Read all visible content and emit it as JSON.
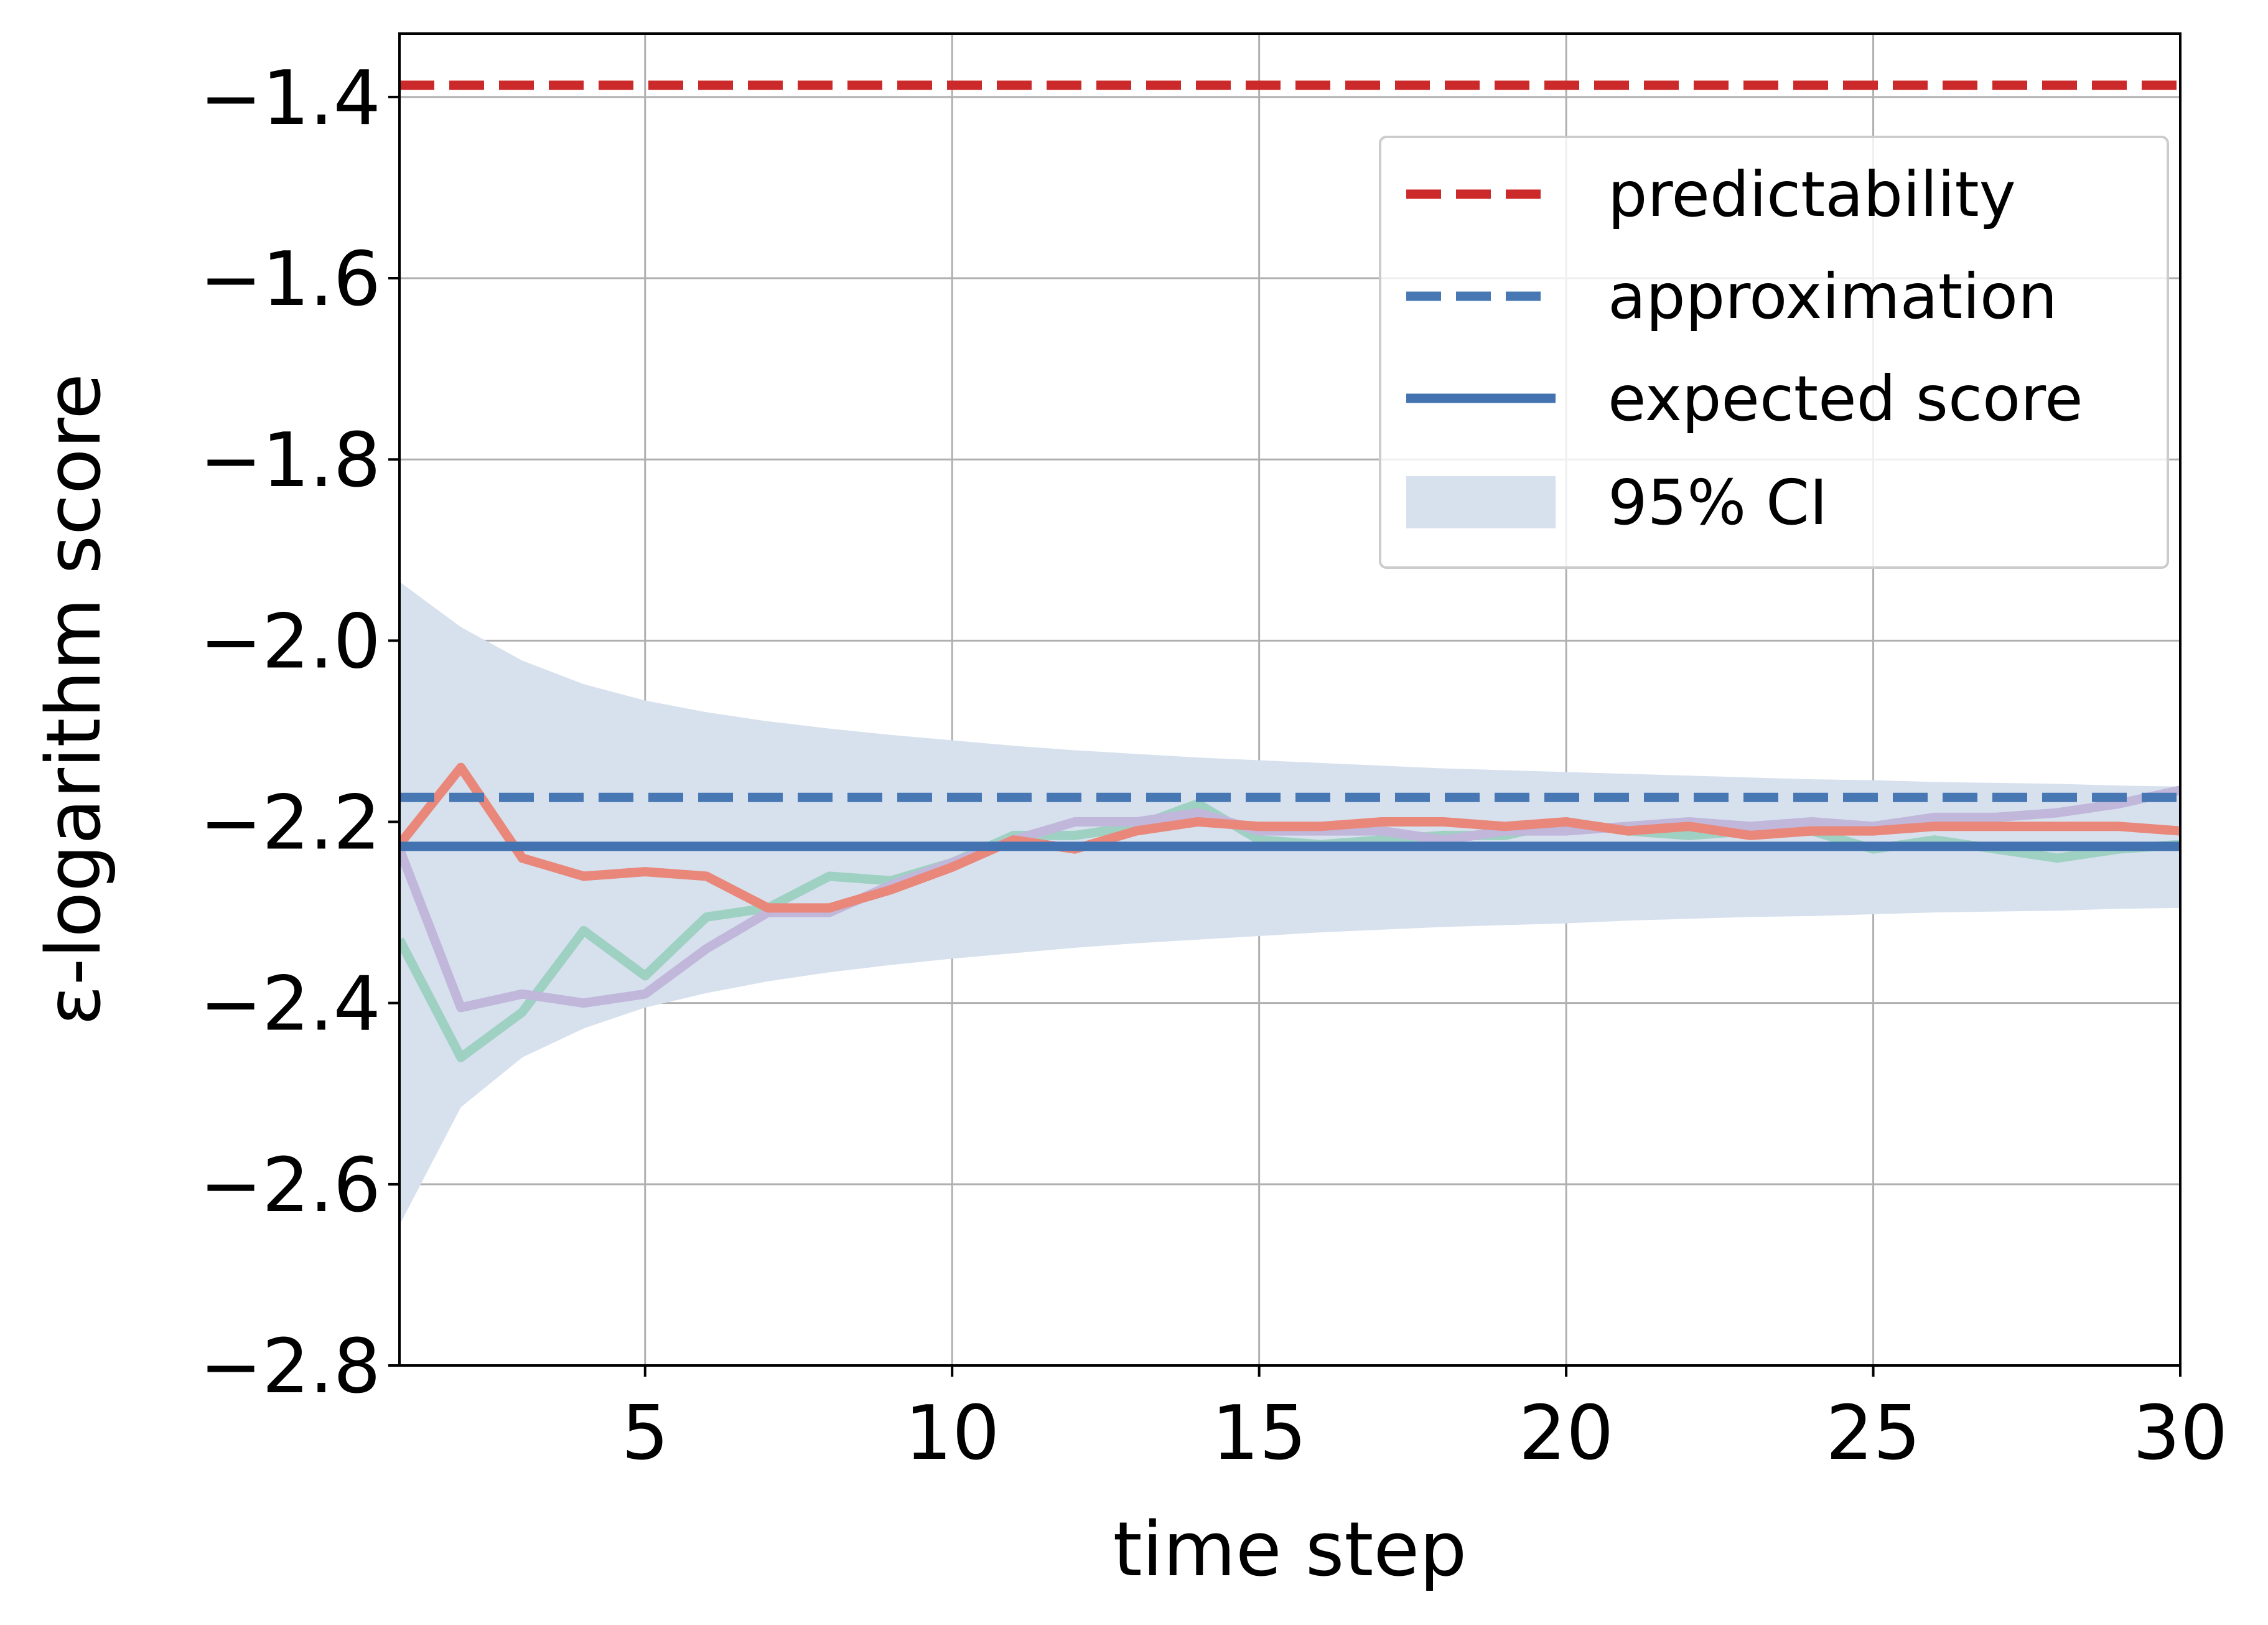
{
  "chart_data": {
    "type": "line",
    "xlabel": "time step",
    "ylabel": "ε-logarithm score",
    "xlim": [
      1,
      30
    ],
    "ylim": [
      -2.8,
      -1.33
    ],
    "xticks": [
      {
        "value": 5,
        "label": "5"
      },
      {
        "value": 10,
        "label": "10"
      },
      {
        "value": 15,
        "label": "15"
      },
      {
        "value": 20,
        "label": "20"
      },
      {
        "value": 25,
        "label": "25"
      },
      {
        "value": 30,
        "label": "30"
      }
    ],
    "yticks": [
      {
        "value": -1.4,
        "label": "−1.4"
      },
      {
        "value": -1.6,
        "label": "−1.6"
      },
      {
        "value": -1.8,
        "label": "−1.8"
      },
      {
        "value": -2.0,
        "label": "−2.0"
      },
      {
        "value": -2.2,
        "label": "−2.2"
      },
      {
        "value": -2.4,
        "label": "−2.4"
      },
      {
        "value": -2.6,
        "label": "−2.6"
      },
      {
        "value": -2.8,
        "label": "−2.8"
      }
    ],
    "grid": true,
    "legend_position": "top-right",
    "legend": [
      {
        "label": "predictability",
        "style": "dashed",
        "color": "#cc2a2a"
      },
      {
        "label": "approximation",
        "style": "dashed",
        "color": "#4878b4"
      },
      {
        "label": "expected score",
        "style": "solid",
        "color": "#4372b0"
      },
      {
        "label": "95% CI",
        "style": "patch",
        "color": "#d7e1ee"
      }
    ],
    "reference_lines": [
      {
        "label": "predictability",
        "y": -1.387,
        "color": "#cc2a2a",
        "style": "dashed"
      },
      {
        "label": "approximation",
        "y": -2.173,
        "color": "#4878b4",
        "style": "dashed"
      },
      {
        "label": "expected score",
        "y": -2.227,
        "color": "#4372b0",
        "style": "solid"
      }
    ],
    "confidence_band": {
      "label": "95% CI",
      "color": "#d7e1ee",
      "x": [
        1,
        2,
        3,
        4,
        5,
        6,
        7,
        8,
        9,
        10,
        11,
        12,
        13,
        14,
        15,
        16,
        17,
        18,
        19,
        20,
        21,
        22,
        23,
        24,
        25,
        26,
        27,
        28,
        29,
        30
      ],
      "upper": [
        -1.935,
        -1.985,
        -2.022,
        -2.048,
        -2.066,
        -2.079,
        -2.089,
        -2.097,
        -2.104,
        -2.11,
        -2.116,
        -2.121,
        -2.125,
        -2.129,
        -2.132,
        -2.135,
        -2.138,
        -2.141,
        -2.143,
        -2.145,
        -2.147,
        -2.149,
        -2.151,
        -2.153,
        -2.154,
        -2.156,
        -2.157,
        -2.158,
        -2.16,
        -2.161
      ],
      "lower": [
        -2.645,
        -2.515,
        -2.46,
        -2.428,
        -2.405,
        -2.389,
        -2.376,
        -2.366,
        -2.358,
        -2.351,
        -2.345,
        -2.339,
        -2.334,
        -2.33,
        -2.326,
        -2.322,
        -2.319,
        -2.316,
        -2.314,
        -2.312,
        -2.309,
        -2.307,
        -2.305,
        -2.304,
        -2.302,
        -2.3,
        -2.299,
        -2.298,
        -2.296,
        -2.295
      ]
    },
    "series": [
      {
        "color": "#9fd1c3",
        "x": [
          1,
          2,
          3,
          4,
          5,
          6,
          7,
          8,
          9,
          10,
          11,
          12,
          13,
          14,
          15,
          16,
          17,
          18,
          19,
          20,
          21,
          22,
          23,
          24,
          25,
          26,
          27,
          28,
          29,
          30
        ],
        "values": [
          -2.33,
          -2.46,
          -2.41,
          -2.32,
          -2.37,
          -2.305,
          -2.295,
          -2.26,
          -2.265,
          -2.245,
          -2.215,
          -2.215,
          -2.205,
          -2.18,
          -2.22,
          -2.225,
          -2.22,
          -2.215,
          -2.215,
          -2.2,
          -2.21,
          -2.215,
          -2.21,
          -2.21,
          -2.23,
          -2.22,
          -2.23,
          -2.24,
          -2.23,
          -2.225
        ]
      },
      {
        "color": "#c0b7db",
        "x": [
          1,
          2,
          3,
          4,
          5,
          6,
          7,
          8,
          9,
          10,
          11,
          12,
          13,
          14,
          15,
          16,
          17,
          18,
          19,
          20,
          21,
          22,
          23,
          24,
          25,
          26,
          27,
          28,
          29,
          30
        ],
        "values": [
          -2.23,
          -2.405,
          -2.39,
          -2.4,
          -2.39,
          -2.34,
          -2.3,
          -2.3,
          -2.27,
          -2.245,
          -2.22,
          -2.2,
          -2.2,
          -2.19,
          -2.21,
          -2.21,
          -2.21,
          -2.22,
          -2.21,
          -2.21,
          -2.205,
          -2.2,
          -2.205,
          -2.2,
          -2.205,
          -2.195,
          -2.195,
          -2.19,
          -2.18,
          -2.165
        ]
      },
      {
        "color": "#e9877a",
        "x": [
          1,
          2,
          3,
          4,
          5,
          6,
          7,
          8,
          9,
          10,
          11,
          12,
          13,
          14,
          15,
          16,
          17,
          18,
          19,
          20,
          21,
          22,
          23,
          24,
          25,
          26,
          27,
          28,
          29,
          30
        ],
        "values": [
          -2.225,
          -2.14,
          -2.24,
          -2.26,
          -2.255,
          -2.26,
          -2.295,
          -2.295,
          -2.275,
          -2.25,
          -2.22,
          -2.23,
          -2.21,
          -2.2,
          -2.205,
          -2.205,
          -2.2,
          -2.2,
          -2.205,
          -2.2,
          -2.21,
          -2.205,
          -2.215,
          -2.21,
          -2.21,
          -2.205,
          -2.205,
          -2.205,
          -2.205,
          -2.21
        ]
      }
    ]
  }
}
